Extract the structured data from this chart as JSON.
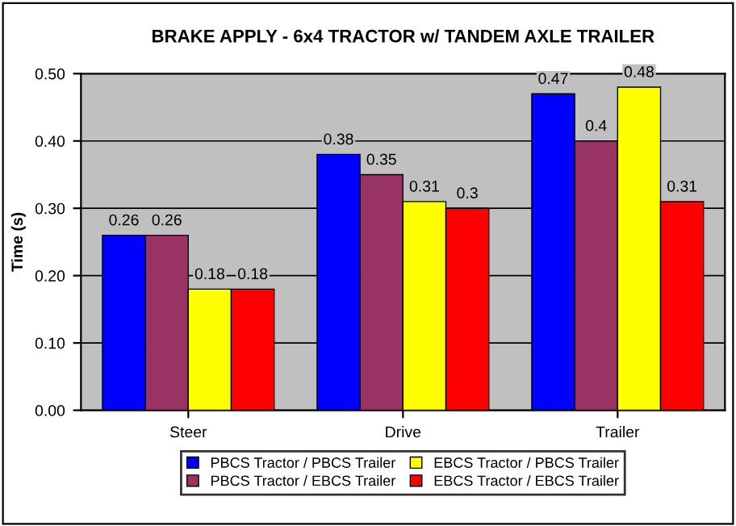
{
  "chart_data": {
    "type": "bar",
    "title": "BRAKE APPLY - 6x4 TRACTOR w/ TANDEM AXLE TRAILER",
    "ylabel": "Time (s)",
    "categories": [
      "Steer",
      "Drive",
      "Trailer"
    ],
    "series": [
      {
        "name": "PBCS Tractor / PBCS Trailer",
        "color": "#0000ff",
        "values": [
          0.26,
          0.38,
          0.47
        ]
      },
      {
        "name": "PBCS Tractor / EBCS Trailer",
        "color": "#993366",
        "values": [
          0.26,
          0.35,
          0.4
        ]
      },
      {
        "name": "EBCS Tractor / PBCS Trailer",
        "color": "#ffff00",
        "values": [
          0.18,
          0.31,
          0.48
        ]
      },
      {
        "name": "EBCS Tractor / EBCS Trailer",
        "color": "#ff0000",
        "values": [
          0.18,
          0.3,
          0.31
        ]
      }
    ],
    "ylim": [
      0,
      0.5
    ],
    "yticks": [
      {
        "value": 0,
        "label": "0.00"
      },
      {
        "value": 0.1,
        "label": "0.10"
      },
      {
        "value": 0.2,
        "label": "0.20"
      },
      {
        "value": 0.3,
        "label": "0.30"
      },
      {
        "value": 0.4,
        "label": "0.40"
      },
      {
        "value": 0.5,
        "label": "0.50"
      }
    ],
    "grid": "y",
    "legend": "bottom",
    "data_labels": true
  }
}
